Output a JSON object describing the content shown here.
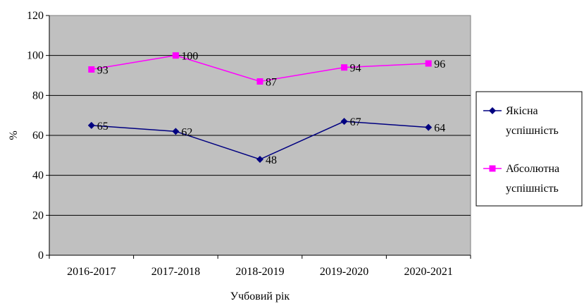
{
  "chart_data": {
    "type": "line",
    "title": "",
    "xlabel": "Учбовий рік",
    "ylabel": "%",
    "categories": [
      "2016-2017",
      "2017-2018",
      "2018-2019",
      "2019-2020",
      "2020-2021"
    ],
    "ylim": [
      0,
      120
    ],
    "yticks": [
      "0",
      "20",
      "40",
      "60",
      "80",
      "100",
      "120"
    ],
    "grid": true,
    "legend_position": "right",
    "series": [
      {
        "name": "Якісна успішність",
        "legend_lines": [
          "Якісна",
          "успішність"
        ],
        "values": [
          65,
          62,
          48,
          67,
          64
        ],
        "labels": [
          "65",
          "62",
          "48",
          "67",
          "64"
        ],
        "color": "#000080",
        "marker": "diamond"
      },
      {
        "name": "Абсолютна успішність",
        "legend_lines": [
          "Абсолютна",
          "успішність"
        ],
        "values": [
          93,
          100,
          87,
          94,
          96
        ],
        "labels": [
          "93",
          "100",
          "87",
          "94",
          "96"
        ],
        "color": "#ff00ff",
        "marker": "square"
      }
    ],
    "plot_background": "#c0c0c0"
  }
}
